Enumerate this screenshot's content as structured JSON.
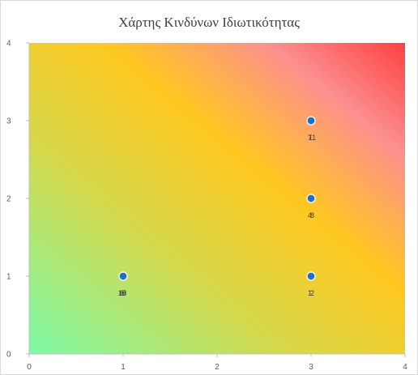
{
  "chart_data": {
    "type": "scatter",
    "title": "Χάρτης Κινδύνων Ιδιωτικότητας",
    "xlabel": "",
    "ylabel": "",
    "xlim": [
      0,
      4
    ],
    "ylim": [
      0,
      4
    ],
    "x_ticks": [
      "0",
      "1",
      "2",
      "3",
      "4"
    ],
    "y_ticks": [
      "0",
      "1",
      "2",
      "3",
      "4"
    ],
    "grid": false,
    "background": "diagonal gradient: green (low) → yellow → orange → red (high)",
    "gradient_colors": [
      "#7dfaa8",
      "#d7d84a",
      "#ffc820",
      "#fc8f8f",
      "#ff4040"
    ],
    "marker_color": "#1f6fc5",
    "points": [
      {
        "x": 3,
        "y": 3,
        "labels": [
          "7",
          "11"
        ]
      },
      {
        "x": 3,
        "y": 2,
        "labels": [
          "4",
          "8"
        ]
      },
      {
        "x": 3,
        "y": 1,
        "labels": [
          "1",
          "2"
        ]
      },
      {
        "x": 1,
        "y": 1,
        "labels": [
          "3",
          "5",
          "6",
          "9",
          "10"
        ]
      }
    ]
  }
}
